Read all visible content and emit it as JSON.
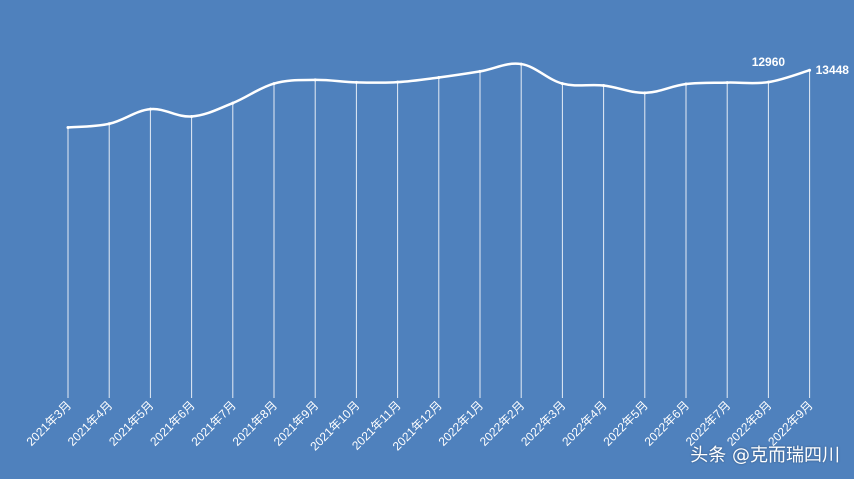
{
  "chart_data": {
    "type": "line",
    "categories": [
      "2021年3月",
      "2021年4月",
      "2021年5月",
      "2021年6月",
      "2021年7月",
      "2021年8月",
      "2021年9月",
      "2021年10月",
      "2021年11月",
      "2021年12月",
      "2022年1月",
      "2022年2月",
      "2022年3月",
      "2022年4月",
      "2022年5月",
      "2022年6月",
      "2022年7月",
      "2022年8月",
      "2022年9月"
    ],
    "values": [
      11100,
      11250,
      11850,
      11550,
      12100,
      12900,
      13050,
      12950,
      12960,
      13150,
      13400,
      13700,
      12900,
      12820,
      12520,
      12880,
      12940,
      12960,
      13448
    ],
    "data_labels": [
      {
        "index": 17,
        "text": "12960"
      },
      {
        "index": 18,
        "text": "13448"
      }
    ],
    "ylim": [
      0,
      16000
    ],
    "grid": false,
    "drop_lines": true,
    "line_color": "#ffffff",
    "background": "#4f81bd"
  },
  "watermark": "头条 @克而瑞四川"
}
